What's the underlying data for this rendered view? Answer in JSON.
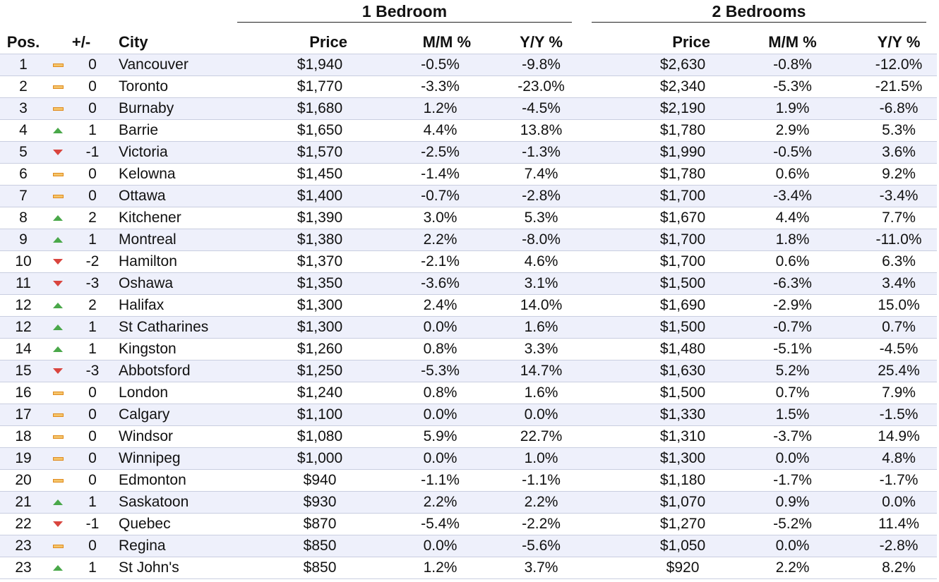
{
  "chart_data": {
    "type": "table",
    "groups": [
      "1 Bedroom",
      "2 Bedrooms"
    ],
    "columns": [
      "Pos.",
      "+/-",
      "City",
      "Price",
      "M/M %",
      "Y/Y %",
      "Price",
      "M/M %",
      "Y/Y %"
    ],
    "rows": [
      {
        "pos": "1",
        "trend": "flat",
        "change": "0",
        "city": "Vancouver",
        "b1_price": "$1,940",
        "b1_mm": "-0.5%",
        "b1_yy": "-9.8%",
        "b2_price": "$2,630",
        "b2_mm": "-0.8%",
        "b2_yy": "-12.0%"
      },
      {
        "pos": "2",
        "trend": "flat",
        "change": "0",
        "city": "Toronto",
        "b1_price": "$1,770",
        "b1_mm": "-3.3%",
        "b1_yy": "-23.0%",
        "b2_price": "$2,340",
        "b2_mm": "-5.3%",
        "b2_yy": "-21.5%"
      },
      {
        "pos": "3",
        "trend": "flat",
        "change": "0",
        "city": "Burnaby",
        "b1_price": "$1,680",
        "b1_mm": "1.2%",
        "b1_yy": "-4.5%",
        "b2_price": "$2,190",
        "b2_mm": "1.9%",
        "b2_yy": "-6.8%"
      },
      {
        "pos": "4",
        "trend": "up",
        "change": "1",
        "city": "Barrie",
        "b1_price": "$1,650",
        "b1_mm": "4.4%",
        "b1_yy": "13.8%",
        "b2_price": "$1,780",
        "b2_mm": "2.9%",
        "b2_yy": "5.3%"
      },
      {
        "pos": "5",
        "trend": "down",
        "change": "-1",
        "city": "Victoria",
        "b1_price": "$1,570",
        "b1_mm": "-2.5%",
        "b1_yy": "-1.3%",
        "b2_price": "$1,990",
        "b2_mm": "-0.5%",
        "b2_yy": "3.6%"
      },
      {
        "pos": "6",
        "trend": "flat",
        "change": "0",
        "city": "Kelowna",
        "b1_price": "$1,450",
        "b1_mm": "-1.4%",
        "b1_yy": "7.4%",
        "b2_price": "$1,780",
        "b2_mm": "0.6%",
        "b2_yy": "9.2%"
      },
      {
        "pos": "7",
        "trend": "flat",
        "change": "0",
        "city": "Ottawa",
        "b1_price": "$1,400",
        "b1_mm": "-0.7%",
        "b1_yy": "-2.8%",
        "b2_price": "$1,700",
        "b2_mm": "-3.4%",
        "b2_yy": "-3.4%"
      },
      {
        "pos": "8",
        "trend": "up",
        "change": "2",
        "city": "Kitchener",
        "b1_price": "$1,390",
        "b1_mm": "3.0%",
        "b1_yy": "5.3%",
        "b2_price": "$1,670",
        "b2_mm": "4.4%",
        "b2_yy": "7.7%"
      },
      {
        "pos": "9",
        "trend": "up",
        "change": "1",
        "city": "Montreal",
        "b1_price": "$1,380",
        "b1_mm": "2.2%",
        "b1_yy": "-8.0%",
        "b2_price": "$1,700",
        "b2_mm": "1.8%",
        "b2_yy": "-11.0%"
      },
      {
        "pos": "10",
        "trend": "down",
        "change": "-2",
        "city": "Hamilton",
        "b1_price": "$1,370",
        "b1_mm": "-2.1%",
        "b1_yy": "4.6%",
        "b2_price": "$1,700",
        "b2_mm": "0.6%",
        "b2_yy": "6.3%"
      },
      {
        "pos": "11",
        "trend": "down",
        "change": "-3",
        "city": "Oshawa",
        "b1_price": "$1,350",
        "b1_mm": "-3.6%",
        "b1_yy": "3.1%",
        "b2_price": "$1,500",
        "b2_mm": "-6.3%",
        "b2_yy": "3.4%"
      },
      {
        "pos": "12",
        "trend": "up",
        "change": "2",
        "city": "Halifax",
        "b1_price": "$1,300",
        "b1_mm": "2.4%",
        "b1_yy": "14.0%",
        "b2_price": "$1,690",
        "b2_mm": "-2.9%",
        "b2_yy": "15.0%"
      },
      {
        "pos": "12",
        "trend": "up",
        "change": "1",
        "city": "St Catharines",
        "b1_price": "$1,300",
        "b1_mm": "0.0%",
        "b1_yy": "1.6%",
        "b2_price": "$1,500",
        "b2_mm": "-0.7%",
        "b2_yy": "0.7%"
      },
      {
        "pos": "14",
        "trend": "up",
        "change": "1",
        "city": "Kingston",
        "b1_price": "$1,260",
        "b1_mm": "0.8%",
        "b1_yy": "3.3%",
        "b2_price": "$1,480",
        "b2_mm": "-5.1%",
        "b2_yy": "-4.5%"
      },
      {
        "pos": "15",
        "trend": "down",
        "change": "-3",
        "city": "Abbotsford",
        "b1_price": "$1,250",
        "b1_mm": "-5.3%",
        "b1_yy": "14.7%",
        "b2_price": "$1,630",
        "b2_mm": "5.2%",
        "b2_yy": "25.4%"
      },
      {
        "pos": "16",
        "trend": "flat",
        "change": "0",
        "city": "London",
        "b1_price": "$1,240",
        "b1_mm": "0.8%",
        "b1_yy": "1.6%",
        "b2_price": "$1,500",
        "b2_mm": "0.7%",
        "b2_yy": "7.9%"
      },
      {
        "pos": "17",
        "trend": "flat",
        "change": "0",
        "city": "Calgary",
        "b1_price": "$1,100",
        "b1_mm": "0.0%",
        "b1_yy": "0.0%",
        "b2_price": "$1,330",
        "b2_mm": "1.5%",
        "b2_yy": "-1.5%"
      },
      {
        "pos": "18",
        "trend": "flat",
        "change": "0",
        "city": "Windsor",
        "b1_price": "$1,080",
        "b1_mm": "5.9%",
        "b1_yy": "22.7%",
        "b2_price": "$1,310",
        "b2_mm": "-3.7%",
        "b2_yy": "14.9%"
      },
      {
        "pos": "19",
        "trend": "flat",
        "change": "0",
        "city": "Winnipeg",
        "b1_price": "$1,000",
        "b1_mm": "0.0%",
        "b1_yy": "1.0%",
        "b2_price": "$1,300",
        "b2_mm": "0.0%",
        "b2_yy": "4.8%"
      },
      {
        "pos": "20",
        "trend": "flat",
        "change": "0",
        "city": "Edmonton",
        "b1_price": "$940",
        "b1_mm": "-1.1%",
        "b1_yy": "-1.1%",
        "b2_price": "$1,180",
        "b2_mm": "-1.7%",
        "b2_yy": "-1.7%"
      },
      {
        "pos": "21",
        "trend": "up",
        "change": "1",
        "city": "Saskatoon",
        "b1_price": "$930",
        "b1_mm": "2.2%",
        "b1_yy": "2.2%",
        "b2_price": "$1,070",
        "b2_mm": "0.9%",
        "b2_yy": "0.0%"
      },
      {
        "pos": "22",
        "trend": "down",
        "change": "-1",
        "city": "Quebec",
        "b1_price": "$870",
        "b1_mm": "-5.4%",
        "b1_yy": "-2.2%",
        "b2_price": "$1,270",
        "b2_mm": "-5.2%",
        "b2_yy": "11.4%"
      },
      {
        "pos": "23",
        "trend": "flat",
        "change": "0",
        "city": "Regina",
        "b1_price": "$850",
        "b1_mm": "0.0%",
        "b1_yy": "-5.6%",
        "b2_price": "$1,050",
        "b2_mm": "0.0%",
        "b2_yy": "-2.8%"
      },
      {
        "pos": "23",
        "trend": "up",
        "change": "1",
        "city": "St John's",
        "b1_price": "$850",
        "b1_mm": "1.2%",
        "b1_yy": "3.7%",
        "b2_price": "$920",
        "b2_mm": "2.2%",
        "b2_yy": "8.2%"
      }
    ]
  },
  "colors": {
    "row_stripe": "#eef0fb",
    "row_border": "#c9cee0",
    "trend_up": "#4aa84a",
    "trend_down": "#d9453e",
    "trend_flat": "#f4c46a"
  },
  "icons": {
    "up": "triangle-up-icon",
    "down": "triangle-down-icon",
    "flat": "dash-icon"
  }
}
